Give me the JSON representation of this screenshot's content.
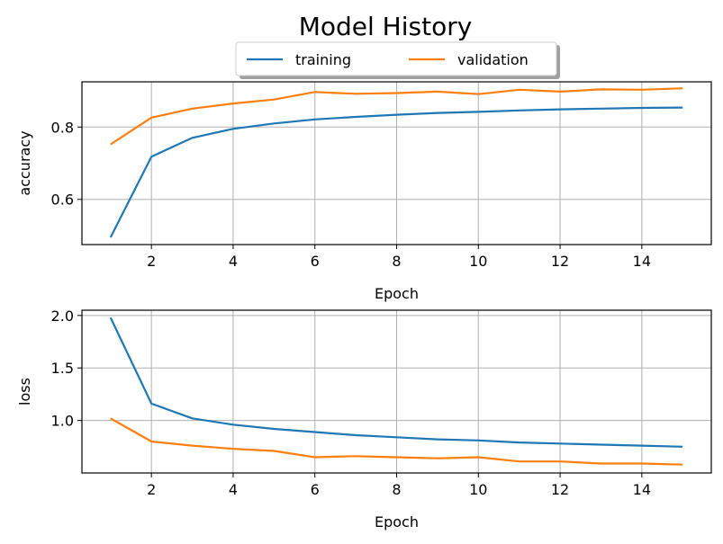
{
  "figure": {
    "title": "Model History"
  },
  "legend": {
    "entries": [
      {
        "label": "training",
        "color": "#1f77b4"
      },
      {
        "label": "validation",
        "color": "#ff7f0e"
      }
    ]
  },
  "chart_data": [
    {
      "type": "line",
      "title": "",
      "xlabel": "Epoch",
      "ylabel": "accuracy",
      "x": [
        1,
        2,
        3,
        4,
        5,
        6,
        7,
        8,
        9,
        10,
        11,
        12,
        13,
        14,
        15
      ],
      "xlim": [
        0.3,
        15.7
      ],
      "ylim": [
        0.475,
        0.925
      ],
      "xticks": [
        2,
        4,
        6,
        8,
        10,
        12,
        14
      ],
      "yticks": [
        0.6,
        0.8
      ],
      "ytick_labels": [
        "0.6",
        "0.8"
      ],
      "grid": true,
      "legend_position": "above plot, center",
      "series": [
        {
          "name": "training",
          "color": "#1f77b4",
          "values": [
            0.495,
            0.718,
            0.77,
            0.795,
            0.81,
            0.821,
            0.828,
            0.834,
            0.839,
            0.842,
            0.846,
            0.849,
            0.851,
            0.853,
            0.854
          ]
        },
        {
          "name": "validation",
          "color": "#ff7f0e",
          "values": [
            0.752,
            0.826,
            0.851,
            0.865,
            0.876,
            0.897,
            0.892,
            0.894,
            0.898,
            0.891,
            0.903,
            0.898,
            0.904,
            0.903,
            0.907
          ]
        }
      ]
    },
    {
      "type": "line",
      "title": "",
      "xlabel": "Epoch",
      "ylabel": "loss",
      "x": [
        1,
        2,
        3,
        4,
        5,
        6,
        7,
        8,
        9,
        10,
        11,
        12,
        13,
        14,
        15
      ],
      "xlim": [
        0.3,
        15.7
      ],
      "ylim": [
        0.5,
        2.05
      ],
      "xticks": [
        2,
        4,
        6,
        8,
        10,
        12,
        14
      ],
      "yticks": [
        1.0,
        1.5,
        2.0
      ],
      "ytick_labels": [
        "1.0",
        "1.5",
        "2.0"
      ],
      "grid": true,
      "series": [
        {
          "name": "training",
          "color": "#1f77b4",
          "values": [
            1.98,
            1.16,
            1.02,
            0.96,
            0.92,
            0.89,
            0.86,
            0.84,
            0.82,
            0.81,
            0.79,
            0.78,
            0.77,
            0.76,
            0.75
          ]
        },
        {
          "name": "validation",
          "color": "#ff7f0e",
          "values": [
            1.02,
            0.8,
            0.76,
            0.73,
            0.71,
            0.65,
            0.66,
            0.65,
            0.64,
            0.65,
            0.61,
            0.61,
            0.59,
            0.59,
            0.58
          ]
        }
      ]
    }
  ]
}
